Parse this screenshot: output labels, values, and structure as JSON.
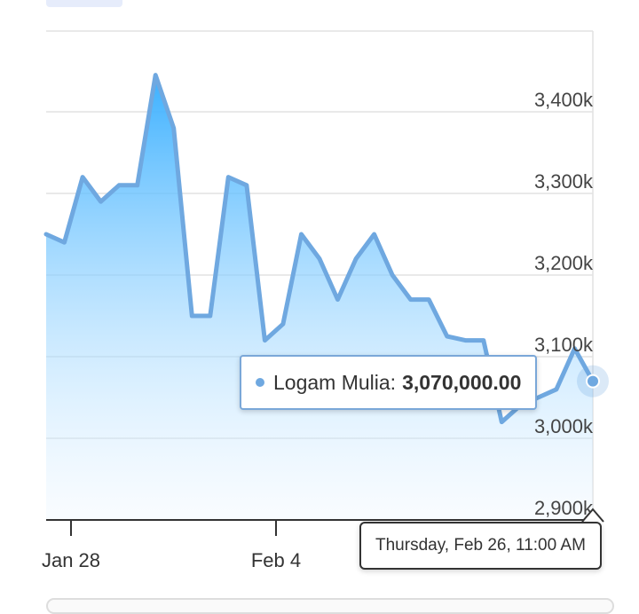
{
  "chart_data": {
    "type": "area",
    "y_ticks": [
      "3,400k",
      "3,300k",
      "3,200k",
      "3,100k",
      "3,000k",
      "2,900k"
    ],
    "y_tick_values": [
      3400000,
      3300000,
      3200000,
      3100000,
      3000000,
      2900000
    ],
    "x_ticks": [
      "Jan 28",
      "Feb 4"
    ],
    "ylim": [
      2900000,
      3440000
    ],
    "grid": true,
    "series": [
      {
        "name": "Logam Mulia",
        "values": [
          3250000,
          3240000,
          3320000,
          3290000,
          3310000,
          3310000,
          3445000,
          3380000,
          3150000,
          3150000,
          3320000,
          3310000,
          3120000,
          3140000,
          3250000,
          3220000,
          3170000,
          3220000,
          3250000,
          3200000,
          3170000,
          3170000,
          3125000,
          3120000,
          3120000,
          3020000,
          3040000,
          3050000,
          3060000,
          3110000,
          3070000
        ],
        "color": "#6fa8e0"
      }
    ],
    "tooltip": {
      "series_label": "Logam Mulia:",
      "value_label": "3,070,000.00",
      "date_label": "Thursday, Feb 26, 11:00 AM"
    }
  }
}
